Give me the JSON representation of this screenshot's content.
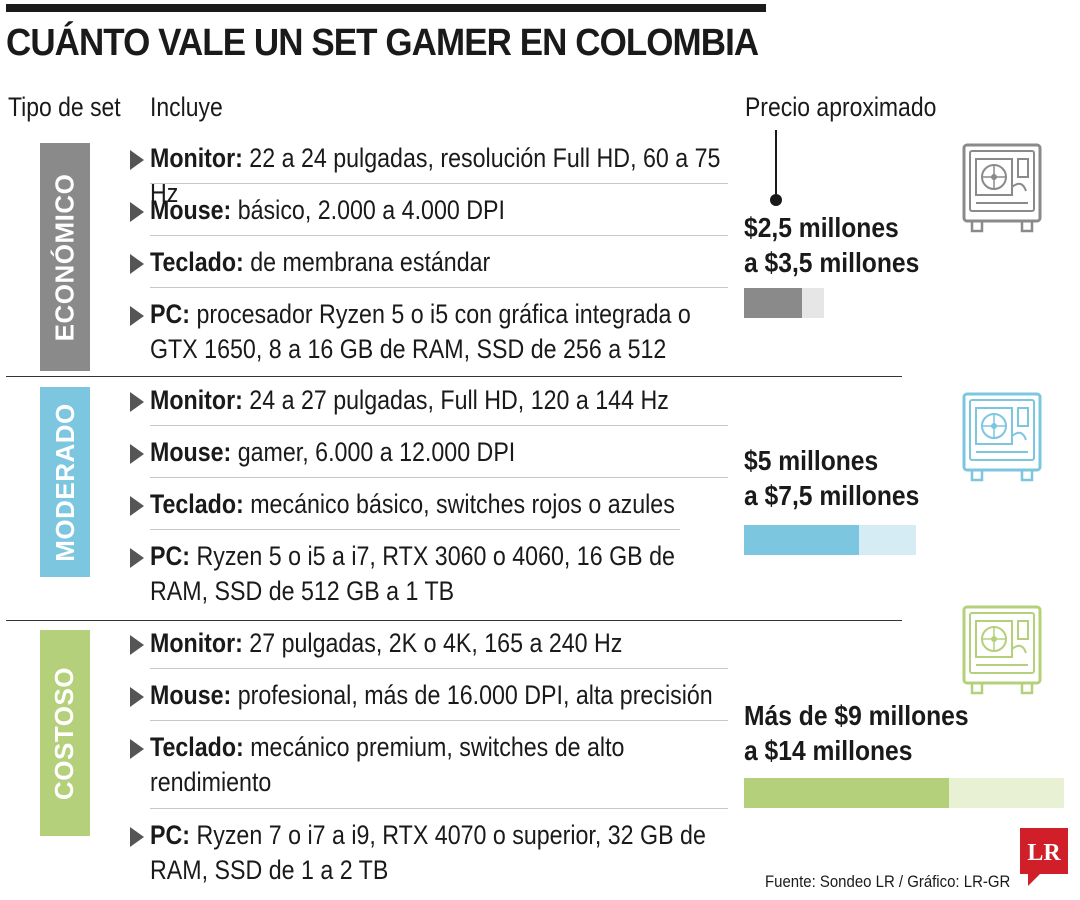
{
  "title": "CUÁNTO VALE UN SET GAMER EN COLOMBIA",
  "headers": {
    "tipo": "Tipo de set",
    "incluye": "Incluye",
    "precio": "Precio aproximado"
  },
  "sections": [
    {
      "tag": "ECONÓMICO",
      "color": "#8a8a8a",
      "bar_bg": "#e6e6e6",
      "items": [
        {
          "label": "Monitor:",
          "text": " 22 a 24 pulgadas, resolución Full HD, 60 a 75 Hz"
        },
        {
          "label": "Mouse:",
          "text": " básico, 2.000 a 4.000 DPI"
        },
        {
          "label": "Teclado:",
          "text": " de membrana estándar"
        },
        {
          "label": "PC:",
          "text": " procesador Ryzen 5 o i5 con gráfica integrada o GTX 1650, 8 a 16 GB de RAM, SSD de 256 a 512"
        }
      ],
      "price_line1": "$2,5 millones",
      "price_line2": "a $3,5 millones",
      "bar_fraction": 0.72
    },
    {
      "tag": "MODERADO",
      "color": "#7dc6e0",
      "bar_bg": "#d6ecf4",
      "items": [
        {
          "label": "Monitor:",
          "text": " 24 a 27 pulgadas, Full HD, 120 a 144 Hz"
        },
        {
          "label": "Mouse:",
          "text": " gamer, 6.000 a 12.000 DPI"
        },
        {
          "label": "Teclado:",
          "text": " mecánico básico, switches rojos o azules"
        },
        {
          "label": "PC:",
          "text": " Ryzen 5 o i5 a i7, RTX 3060 o 4060, 16 GB de RAM, SSD de 512 GB a 1 TB"
        }
      ],
      "price_line1": "$5 millones",
      "price_line2": "a $7,5 millones",
      "bar_fraction": 0.67
    },
    {
      "tag": "COSTOSO",
      "color": "#b5d07a",
      "bar_bg": "#e8f1d3",
      "items": [
        {
          "label": "Monitor:",
          "text": " 27 pulgadas, 2K o 4K, 165 a 240 Hz"
        },
        {
          "label": "Mouse:",
          "text": " profesional, más de 16.000 DPI, alta precisión"
        },
        {
          "label": "Teclado:",
          "text": " mecánico premium, switches de alto rendimiento"
        },
        {
          "label": "PC:",
          "text": " Ryzen 7 o i7 a i9, RTX 4070 o superior, 32 GB de RAM, SSD de 1 a 2 TB"
        }
      ],
      "price_line1": "Más de $9 millones",
      "price_line2": "a $14 millones",
      "bar_fraction": 0.64
    }
  ],
  "source": "Fuente: Sondeo LR / Gráfico: LR-GR",
  "logo_text": "LR",
  "icons": {
    "case": "pc-case-icon"
  }
}
